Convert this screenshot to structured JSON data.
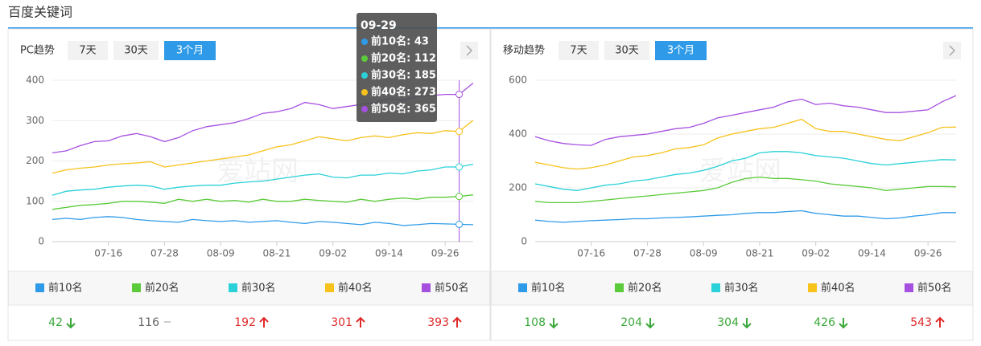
{
  "header": {
    "title": "百度关键词"
  },
  "watermark": "爱站网",
  "panels": [
    {
      "title": "PC趋势",
      "buttons": [
        "7天",
        "30天",
        "3个月"
      ],
      "active_button": 2,
      "chart_data": {
        "type": "line",
        "x": [
          "07-04",
          "07-07",
          "07-10",
          "07-13",
          "07-16",
          "07-19",
          "07-22",
          "07-25",
          "07-28",
          "07-31",
          "08-03",
          "08-06",
          "08-09",
          "08-12",
          "08-15",
          "08-18",
          "08-21",
          "08-24",
          "08-27",
          "08-30",
          "09-02",
          "09-05",
          "09-08",
          "09-11",
          "09-14",
          "09-17",
          "09-20",
          "09-23",
          "09-26",
          "09-29",
          "10-01"
        ],
        "xticks": [
          "07-16",
          "07-28",
          "08-09",
          "08-21",
          "09-02",
          "09-14",
          "09-26"
        ],
        "ylim": [
          0,
          400
        ],
        "yticks": [
          0,
          100,
          200,
          300,
          400
        ],
        "grid": true,
        "series": [
          {
            "name": "前10名",
            "color": "#2f9be8",
            "values": [
              55,
              58,
              55,
              60,
              62,
              60,
              55,
              52,
              50,
              48,
              55,
              52,
              50,
              52,
              48,
              50,
              52,
              48,
              45,
              50,
              48,
              45,
              42,
              48,
              45,
              40,
              42,
              45,
              44,
              43,
              42
            ]
          },
          {
            "name": "前20名",
            "color": "#5ccb3b",
            "values": [
              80,
              85,
              90,
              92,
              95,
              100,
              100,
              98,
              95,
              105,
              100,
              105,
              100,
              102,
              98,
              105,
              100,
              100,
              105,
              102,
              100,
              98,
              105,
              100,
              105,
              108,
              105,
              110,
              110,
              112,
              116
            ]
          },
          {
            "name": "前30名",
            "color": "#2ad1d8",
            "values": [
              115,
              125,
              128,
              130,
              135,
              138,
              140,
              138,
              130,
              135,
              138,
              140,
              140,
              145,
              148,
              150,
              155,
              160,
              165,
              168,
              160,
              158,
              165,
              165,
              170,
              168,
              175,
              178,
              185,
              185,
              192
            ]
          },
          {
            "name": "前40名",
            "color": "#f7c21b",
            "values": [
              170,
              178,
              182,
              185,
              190,
              193,
              195,
              198,
              185,
              190,
              195,
              200,
              205,
              210,
              215,
              225,
              235,
              240,
              250,
              260,
              255,
              250,
              258,
              262,
              258,
              265,
              270,
              268,
              275,
              273,
              301
            ]
          },
          {
            "name": "前50名",
            "color": "#a650e0",
            "values": [
              220,
              225,
              238,
              248,
              250,
              262,
              268,
              260,
              248,
              258,
              275,
              285,
              290,
              295,
              305,
              318,
              322,
              330,
              345,
              340,
              330,
              335,
              340,
              345,
              355,
              350,
              360,
              362,
              365,
              365,
              393
            ]
          }
        ]
      },
      "tooltip": {
        "x": "09-29",
        "items": [
          {
            "label": "前10名: 43",
            "value": 43
          },
          {
            "label": "前20名: 112",
            "value": 112
          },
          {
            "label": "前30名: 185",
            "value": 185
          },
          {
            "label": "前40名: 273",
            "value": 273
          },
          {
            "label": "前50名: 365",
            "value": 365
          }
        ]
      },
      "summary": [
        {
          "value": 42,
          "trend": "down"
        },
        {
          "value": 116,
          "trend": "flat"
        },
        {
          "value": 192,
          "trend": "up"
        },
        {
          "value": 301,
          "trend": "up"
        },
        {
          "value": 393,
          "trend": "up"
        }
      ]
    },
    {
      "title": "移动趋势",
      "buttons": [
        "7天",
        "30天",
        "3个月"
      ],
      "active_button": 2,
      "chart_data": {
        "type": "line",
        "x": [
          "07-04",
          "07-07",
          "07-10",
          "07-13",
          "07-16",
          "07-19",
          "07-22",
          "07-25",
          "07-28",
          "07-31",
          "08-03",
          "08-06",
          "08-09",
          "08-12",
          "08-15",
          "08-18",
          "08-21",
          "08-24",
          "08-27",
          "08-30",
          "09-02",
          "09-05",
          "09-08",
          "09-11",
          "09-14",
          "09-17",
          "09-20",
          "09-23",
          "09-26",
          "09-29",
          "10-01"
        ],
        "xticks": [
          "07-16",
          "07-28",
          "08-09",
          "08-21",
          "09-02",
          "09-14",
          "09-26"
        ],
        "ylim": [
          0,
          600
        ],
        "yticks": [
          0,
          200,
          400,
          600
        ],
        "grid": true,
        "series": [
          {
            "name": "前10名",
            "color": "#2f9be8",
            "values": [
              80,
              75,
              72,
              75,
              78,
              80,
              82,
              85,
              85,
              88,
              90,
              92,
              95,
              98,
              100,
              105,
              108,
              108,
              112,
              115,
              105,
              100,
              95,
              95,
              90,
              85,
              88,
              95,
              100,
              108,
              108
            ]
          },
          {
            "name": "前20名",
            "color": "#5ccb3b",
            "values": [
              150,
              145,
              145,
              145,
              150,
              155,
              160,
              165,
              170,
              175,
              180,
              185,
              190,
              200,
              220,
              235,
              240,
              235,
              235,
              230,
              225,
              215,
              210,
              205,
              200,
              190,
              195,
              200,
              205,
              205,
              204
            ]
          },
          {
            "name": "前30名",
            "color": "#2ad1d8",
            "values": [
              215,
              205,
              195,
              190,
              200,
              210,
              215,
              225,
              230,
              240,
              250,
              255,
              265,
              280,
              300,
              310,
              330,
              335,
              335,
              330,
              320,
              315,
              310,
              300,
              290,
              285,
              290,
              295,
              300,
              305,
              304
            ]
          },
          {
            "name": "前40名",
            "color": "#f7c21b",
            "values": [
              295,
              285,
              275,
              270,
              275,
              285,
              300,
              315,
              320,
              330,
              345,
              350,
              360,
              385,
              400,
              410,
              420,
              425,
              440,
              455,
              420,
              410,
              410,
              400,
              390,
              380,
              375,
              390,
              405,
              425,
              426
            ]
          },
          {
            "name": "前50名",
            "color": "#a650e0",
            "values": [
              390,
              375,
              365,
              360,
              358,
              380,
              390,
              395,
              400,
              410,
              420,
              425,
              440,
              460,
              470,
              480,
              490,
              500,
              520,
              530,
              510,
              515,
              505,
              500,
              490,
              480,
              480,
              485,
              490,
              520,
              543
            ]
          }
        ]
      },
      "summary": [
        {
          "value": 108,
          "trend": "down"
        },
        {
          "value": 204,
          "trend": "down"
        },
        {
          "value": 304,
          "trend": "down"
        },
        {
          "value": 426,
          "trend": "down"
        },
        {
          "value": 543,
          "trend": "up"
        }
      ]
    }
  ]
}
